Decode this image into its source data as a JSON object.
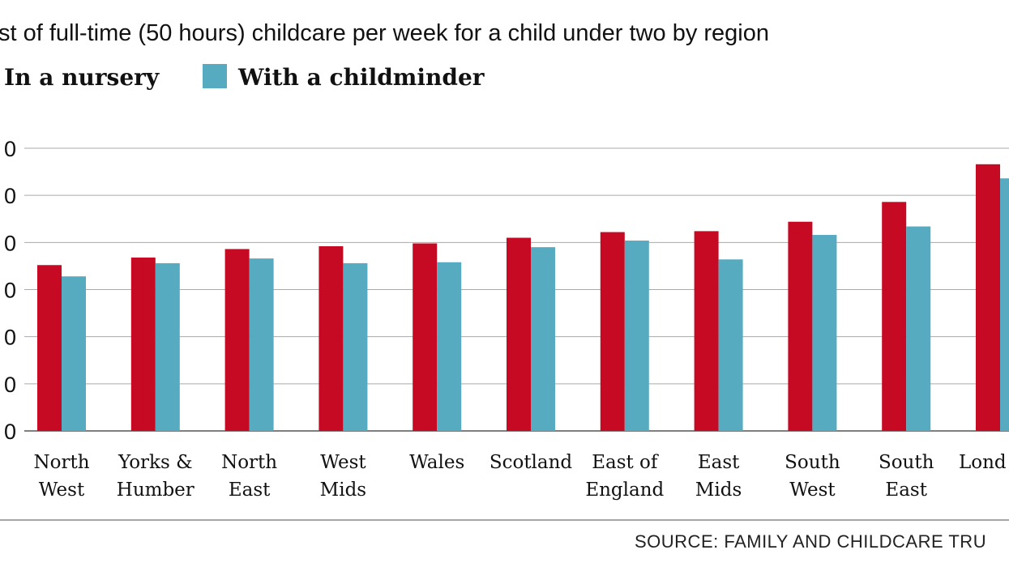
{
  "chart_data": {
    "type": "bar",
    "title": "st of full-time (50 hours) childcare per week for a child under two by region",
    "source": "SOURCE: FAMILY AND CHILDCARE TRU",
    "categories": [
      "North\nWest",
      "Yorks &\nHumber",
      "North\nEast",
      "West\nMids",
      "Wales",
      "Scotland",
      "East of\nEngland",
      "East\nMids",
      "South\nWest",
      "South\nEast",
      "Lond"
    ],
    "series": [
      {
        "name": "In a nursery",
        "color": "#c70a24",
        "values": [
          176,
          184,
          193,
          196,
          199,
          205,
          211,
          212,
          222,
          243,
          283
        ]
      },
      {
        "name": "With a childminder",
        "color": "#56abc0",
        "values": [
          164,
          178,
          183,
          178,
          179,
          195,
          202,
          182,
          208,
          217,
          268
        ]
      }
    ],
    "ylim": [
      0,
      300
    ],
    "yticks": [
      0,
      {
        "value": 50,
        "label": "0"
      },
      {
        "value": 100,
        "label": "0"
      },
      {
        "value": 150,
        "label": "0"
      },
      {
        "value": 200,
        "label": "0"
      },
      {
        "value": 250,
        "label": "0"
      },
      {
        "value": 300,
        "label": "0"
      }
    ],
    "grid": true
  }
}
